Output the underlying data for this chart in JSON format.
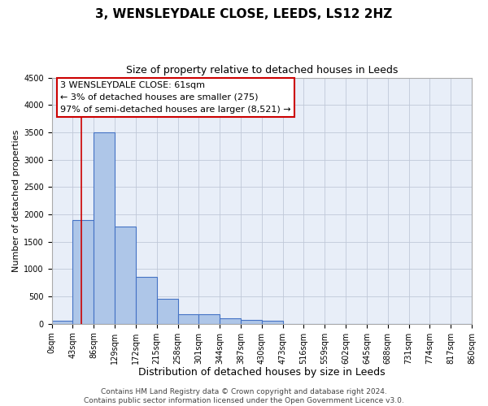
{
  "title": "3, WENSLEYDALE CLOSE, LEEDS, LS12 2HZ",
  "subtitle": "Size of property relative to detached houses in Leeds",
  "xlabel": "Distribution of detached houses by size in Leeds",
  "ylabel": "Number of detached properties",
  "bin_edges": [
    0,
    43,
    86,
    129,
    172,
    215,
    258,
    301,
    344,
    387,
    430,
    473,
    516,
    559,
    602,
    645,
    688,
    731,
    774,
    817,
    860
  ],
  "bin_labels": [
    "0sqm",
    "43sqm",
    "86sqm",
    "129sqm",
    "172sqm",
    "215sqm",
    "258sqm",
    "301sqm",
    "344sqm",
    "387sqm",
    "430sqm",
    "473sqm",
    "516sqm",
    "559sqm",
    "602sqm",
    "645sqm",
    "688sqm",
    "731sqm",
    "774sqm",
    "817sqm",
    "860sqm"
  ],
  "bar_values": [
    50,
    1900,
    3500,
    1770,
    850,
    450,
    175,
    175,
    100,
    75,
    50,
    0,
    0,
    0,
    0,
    0,
    0,
    0,
    0,
    0
  ],
  "bar_color": "#aec6e8",
  "bar_edge_color": "#4472c4",
  "ylim": [
    0,
    4500
  ],
  "yticks": [
    0,
    500,
    1000,
    1500,
    2000,
    2500,
    3000,
    3500,
    4000,
    4500
  ],
  "grid_color": "#c0c8d8",
  "background_color": "#e8eef8",
  "property_line_x": 61,
  "annotation_line1": "3 WENSLEYDALE CLOSE: 61sqm",
  "annotation_line2": "← 3% of detached houses are smaller (275)",
  "annotation_line3": "97% of semi-detached houses are larger (8,521) →",
  "annotation_box_color": "#ffffff",
  "annotation_box_edge_color": "#cc0000",
  "red_line_color": "#cc0000",
  "footer_line1": "Contains HM Land Registry data © Crown copyright and database right 2024.",
  "footer_line2": "Contains public sector information licensed under the Open Government Licence v3.0.",
  "title_fontsize": 11,
  "subtitle_fontsize": 9,
  "xlabel_fontsize": 9,
  "ylabel_fontsize": 8,
  "tick_fontsize": 7,
  "annotation_fontsize": 8,
  "footer_fontsize": 6.5
}
